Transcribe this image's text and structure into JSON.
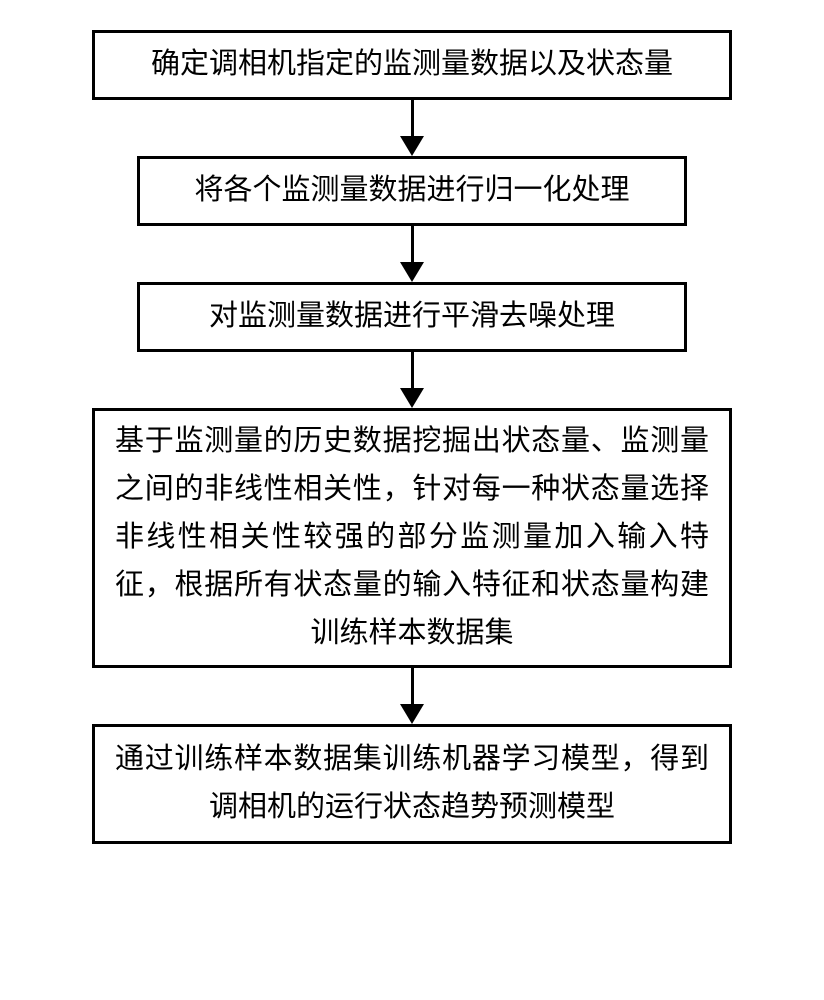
{
  "flowchart": {
    "type": "flowchart",
    "direction": "vertical",
    "nodes": [
      {
        "id": "step1",
        "text": "确定调相机指定的监测量数据以及状态量",
        "box_class": "box-1",
        "text_class": "box-text"
      },
      {
        "id": "step2",
        "text": "将各个监测量数据进行归一化处理",
        "box_class": "box-2",
        "text_class": "box-text"
      },
      {
        "id": "step3",
        "text": "对监测量数据进行平滑去噪处理",
        "box_class": "box-3",
        "text_class": "box-text"
      },
      {
        "id": "step4",
        "text": "基于监测量的历史数据挖掘出状态量、监测量之间的非线性相关性，针对每一种状态量选择非线性相关性较强的部分监测量加入输入特征，根据所有状态量的输入特征和状态量构建训练样本数据集",
        "box_class": "box-4",
        "text_class": "box-text-large"
      },
      {
        "id": "step5",
        "text": "通过训练样本数据集训练机器学习模型，得到调相机的运行状态趋势预测模型",
        "box_class": "box-5",
        "text_class": "box-text-large"
      }
    ],
    "styling": {
      "border_color": "#000000",
      "border_width": 3,
      "background_color": "#ffffff",
      "text_color": "#000000",
      "font_size": 29,
      "font_family": "SimSun",
      "arrow_color": "#000000",
      "arrow_line_width": 3,
      "arrow_head_width": 24,
      "arrow_head_height": 20,
      "arrow_total_height": 56
    }
  }
}
